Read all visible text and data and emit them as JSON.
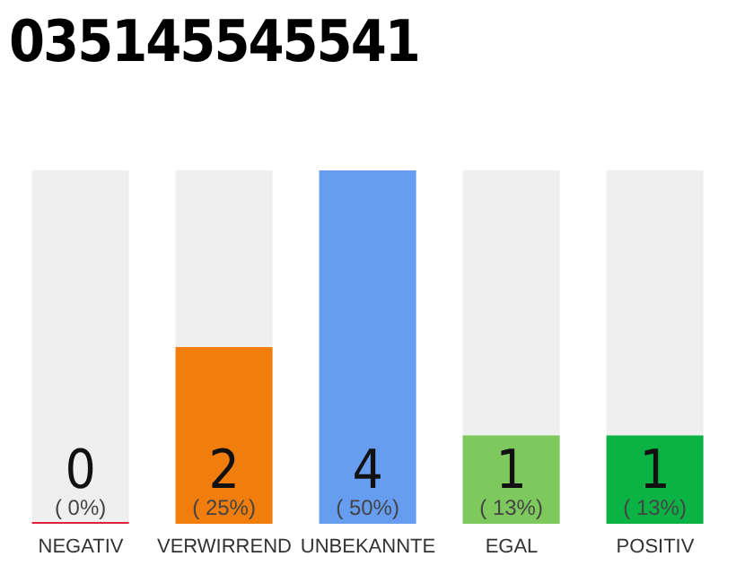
{
  "chart_data": {
    "type": "bar",
    "title": "035145545541",
    "categories": [
      "NEGATIV",
      "VERWIRREND",
      "UNBEKANNTE",
      "EGAL",
      "POSITIV"
    ],
    "values": [
      0,
      2,
      4,
      1,
      1
    ],
    "colors": [
      "#e0203c",
      "#f07d0c",
      "#669df0",
      "#7dc95e",
      "#0bb345"
    ],
    "value_labels": [
      "0\n( 0%)",
      "2\n( 25%)",
      "4\n( 50%)",
      "1\n( 13%)",
      "1\n( 13%)"
    ]
  }
}
